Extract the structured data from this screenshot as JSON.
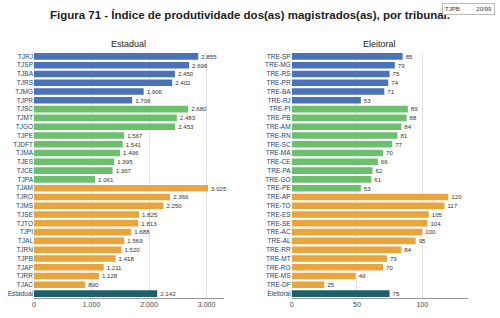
{
  "title": "Figura 71 - Índice de produtividade dos(as) magistrados(as), por tribunal.",
  "search": {
    "query": "TJPB",
    "result": "20/99"
  },
  "chart_data": [
    {
      "type": "bar",
      "title": "Estadual",
      "orientation": "horizontal",
      "data_labels": true,
      "grid": true,
      "categories": [
        "TJRJ",
        "TJSP",
        "TJBA",
        "TJRS",
        "TJMG",
        "TJPR",
        "TJSC",
        "TJMT",
        "TJGO",
        "TJPE",
        "TJDFT",
        "TJMA",
        "TJES",
        "TJCE",
        "TJPA",
        "TJAM",
        "TJRO",
        "TJMS",
        "TJSE",
        "TJTO",
        "TJPI",
        "TJAL",
        "TJRN",
        "TJPB",
        "TJAP",
        "TJRR",
        "TJAC",
        "Estadual"
      ],
      "values": [
        2855,
        2696,
        2450,
        2402,
        1906,
        1706,
        2680,
        2483,
        2453,
        1567,
        1541,
        1496,
        1395,
        1367,
        1061,
        3025,
        2366,
        2250,
        1825,
        1813,
        1688,
        1569,
        1520,
        1418,
        1211,
        1128,
        890,
        2142
      ],
      "value_labels": [
        "2.855",
        "2.696",
        "2.450",
        "2.402",
        "1.906",
        "1.706",
        "2.680",
        "2.483",
        "2.453",
        "1.567",
        "1.541",
        "1.496",
        "1.395",
        "1.367",
        "1.061",
        "3.025",
        "2.366",
        "2.250",
        "1.825",
        "1.813",
        "1.688",
        "1.569",
        "1.520",
        "1.418",
        "1.211",
        "1.128",
        "890",
        "2.142"
      ],
      "colors": [
        "#4a72b8",
        "#4a72b8",
        "#4a72b8",
        "#4a72b8",
        "#4a72b8",
        "#4a72b8",
        "#6cbf6c",
        "#6cbf6c",
        "#6cbf6c",
        "#6cbf6c",
        "#6cbf6c",
        "#6cbf6c",
        "#6cbf6c",
        "#6cbf6c",
        "#6cbf6c",
        "#e8a53e",
        "#e8a53e",
        "#e8a53e",
        "#e8a53e",
        "#e8a53e",
        "#e8a53e",
        "#e8a53e",
        "#e8a53e",
        "#e8a53e",
        "#e8a53e",
        "#e8a53e",
        "#e8a53e",
        "#1f5f6b"
      ],
      "xlim": [
        0,
        3300
      ],
      "xticks": [
        0,
        {
          "value": 1000,
          "label": "1.000"
        },
        {
          "value": 2000,
          "label": "2.000"
        },
        {
          "value": 3000,
          "label": "3.000"
        }
      ]
    },
    {
      "type": "bar",
      "title": "Eleitoral",
      "orientation": "horizontal",
      "data_labels": true,
      "grid": true,
      "categories": [
        "TRE-SP",
        "TRE-MG",
        "TRE-RS",
        "TRE-PR",
        "TRE-BA",
        "TRE-RJ",
        "TRE-PI",
        "TRE-PB",
        "TRE-AM",
        "TRE-RN",
        "TRE-SC",
        "TRE-MA",
        "TRE-CE",
        "TRE-PA",
        "TRE-GO",
        "TRE-PE",
        "TRE-AP",
        "TRE-TO",
        "TRE-ES",
        "TRE-SE",
        "TRE-AC",
        "TRE-AL",
        "TRE-RR",
        "TRE-MT",
        "TRE-RO",
        "TRE-MS",
        "TRE-DF",
        "Eleitoral"
      ],
      "values": [
        85,
        79,
        75,
        74,
        71,
        53,
        89,
        88,
        84,
        81,
        77,
        70,
        66,
        62,
        61,
        53,
        120,
        117,
        105,
        104,
        100,
        95,
        84,
        73,
        70,
        49,
        25,
        75
      ],
      "colors": [
        "#4a72b8",
        "#4a72b8",
        "#4a72b8",
        "#4a72b8",
        "#4a72b8",
        "#4a72b8",
        "#6cbf6c",
        "#6cbf6c",
        "#6cbf6c",
        "#6cbf6c",
        "#6cbf6c",
        "#6cbf6c",
        "#6cbf6c",
        "#6cbf6c",
        "#6cbf6c",
        "#6cbf6c",
        "#e8a53e",
        "#e8a53e",
        "#e8a53e",
        "#e8a53e",
        "#e8a53e",
        "#e8a53e",
        "#e8a53e",
        "#e8a53e",
        "#e8a53e",
        "#e8a53e",
        "#e8a53e",
        "#1f5f6b"
      ],
      "xlim": [
        0,
        135
      ],
      "xticks": [
        0,
        50,
        100
      ]
    }
  ]
}
